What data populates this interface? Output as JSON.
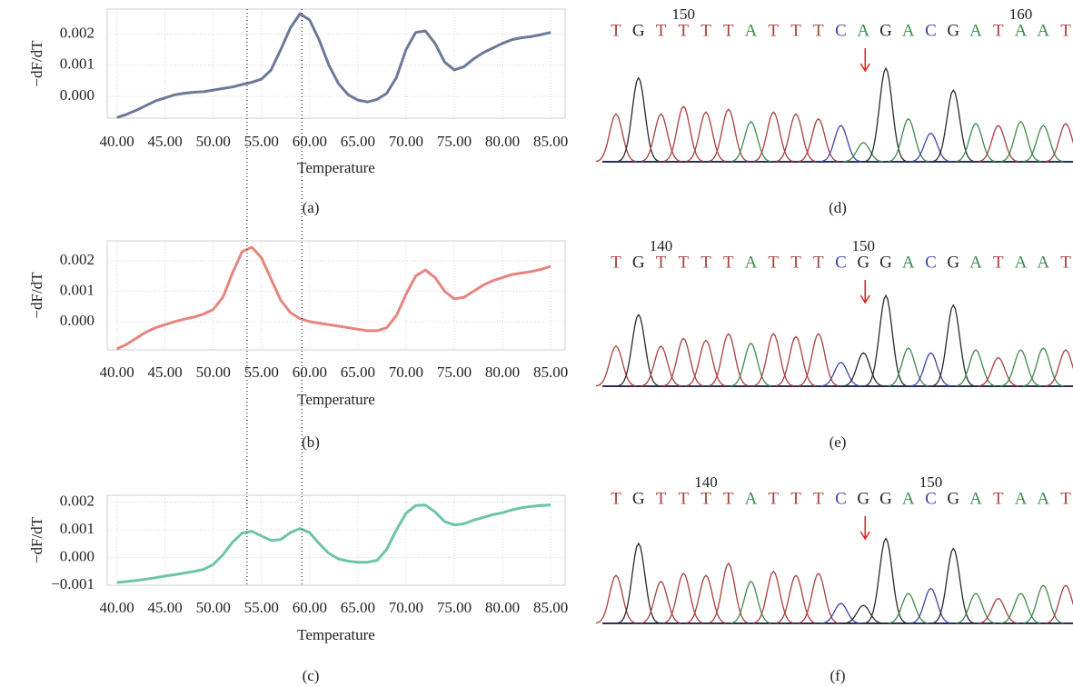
{
  "chart_data": [
    {
      "type": "line",
      "caption": "(a)",
      "x_label": "Temperature",
      "y_label": "−dF/dT",
      "color": "#6b7a99",
      "grid": true,
      "xlim": [
        39,
        86.5
      ],
      "ylim": [
        -0.0007,
        0.0028
      ],
      "xticks": [
        {
          "value": 40,
          "label": "40.00"
        },
        {
          "value": 45,
          "label": "45.00"
        },
        {
          "value": 50,
          "label": "50.00"
        },
        {
          "value": 55,
          "label": "55.00"
        },
        {
          "value": 60,
          "label": "60.00"
        },
        {
          "value": 65,
          "label": "65.00"
        },
        {
          "value": 70,
          "label": "70.00"
        },
        {
          "value": 75,
          "label": "75.00"
        },
        {
          "value": 80,
          "label": "80.00"
        },
        {
          "value": 85,
          "label": "85.00"
        }
      ],
      "yticks": [
        {
          "value": 0,
          "label": "0.000"
        },
        {
          "value": 0.001,
          "label": "0.001"
        },
        0.002
      ],
      "reference_lines": [
        53.5,
        59.2
      ],
      "x": [
        40,
        41,
        42,
        43,
        44,
        45,
        46,
        47,
        48,
        49,
        50,
        51,
        52,
        53,
        54,
        55,
        56,
        57,
        58,
        59,
        60,
        61,
        62,
        63,
        64,
        65,
        66,
        67,
        68,
        69,
        70,
        71,
        72,
        73,
        74,
        75,
        76,
        77,
        78,
        79,
        80,
        81,
        82,
        83,
        84,
        85
      ],
      "values": [
        -0.00068,
        -0.00058,
        -0.00045,
        -0.0003,
        -0.00015,
        -5e-05,
        5e-05,
        0.0001,
        0.00013,
        0.00015,
        0.0002,
        0.00025,
        0.0003,
        0.00038,
        0.00045,
        0.00055,
        0.00085,
        0.0015,
        0.0022,
        0.00265,
        0.00245,
        0.0018,
        0.001,
        0.0004,
        5e-05,
        -0.00012,
        -0.00018,
        -0.0001,
        0.0001,
        0.0006,
        0.0015,
        0.00205,
        0.0021,
        0.0017,
        0.0011,
        0.00085,
        0.00095,
        0.0012,
        0.0014,
        0.00155,
        0.0017,
        0.00182,
        0.00188,
        0.00192,
        0.00198,
        0.00205
      ]
    },
    {
      "type": "line",
      "caption": "(b)",
      "x_label": "Temperature",
      "y_label": "−dF/dT",
      "color": "#e8847e",
      "grid": true,
      "xlim": [
        39,
        86.5
      ],
      "ylim": [
        -0.00093,
        0.00266
      ],
      "xticks": [
        {
          "value": 40,
          "label": "40.00"
        },
        {
          "value": 45,
          "label": "45.00"
        },
        {
          "value": 50,
          "label": "50.00"
        },
        {
          "value": 55,
          "label": "55.00"
        },
        {
          "value": 60,
          "label": "60.00"
        },
        {
          "value": 65,
          "label": "65.00"
        },
        {
          "value": 70,
          "label": "70.00"
        },
        {
          "value": 75,
          "label": "75.00"
        },
        {
          "value": 80,
          "label": "80.00"
        },
        {
          "value": 85,
          "label": "85.00"
        }
      ],
      "yticks": [
        {
          "value": 0,
          "label": "0.000"
        },
        {
          "value": 0.001,
          "label": "0.001"
        },
        0.002
      ],
      "x": [
        40,
        41,
        42,
        43,
        44,
        45,
        46,
        47,
        48,
        49,
        50,
        51,
        52,
        53,
        54,
        55,
        56,
        57,
        58,
        59,
        60,
        61,
        62,
        63,
        64,
        65,
        66,
        67,
        68,
        69,
        70,
        71,
        72,
        73,
        74,
        75,
        76,
        77,
        78,
        79,
        80,
        81,
        82,
        83,
        84,
        85
      ],
      "values": [
        -0.0009,
        -0.00075,
        -0.00055,
        -0.00035,
        -0.0002,
        -0.0001,
        0,
        8e-05,
        0.00015,
        0.00025,
        0.0004,
        0.0008,
        0.0016,
        0.0023,
        0.00245,
        0.0021,
        0.0014,
        0.0007,
        0.0003,
        0.0001,
        0,
        -5e-05,
        -0.0001,
        -0.00015,
        -0.0002,
        -0.00025,
        -0.0003,
        -0.0003,
        -0.0002,
        0.0002,
        0.0009,
        0.0015,
        0.0017,
        0.00145,
        0.001,
        0.00075,
        0.0008,
        0.001,
        0.0012,
        0.00135,
        0.00145,
        0.00155,
        0.0016,
        0.00165,
        0.00172,
        0.00182
      ]
    },
    {
      "type": "line",
      "caption": "(c)",
      "x_label": "Temperature",
      "y_label": "−dF/dT",
      "color": "#6cc4ac",
      "grid": true,
      "xlim": [
        39,
        86.5
      ],
      "ylim": [
        -0.001,
        0.00225
      ],
      "xticks": [
        {
          "value": 40,
          "label": "40.00"
        },
        {
          "value": 45,
          "label": "45.00"
        },
        {
          "value": 50,
          "label": "50.00"
        },
        {
          "value": 55,
          "label": "55.00"
        },
        {
          "value": 60,
          "label": "60.00"
        },
        {
          "value": 65,
          "label": "65.00"
        },
        {
          "value": 70,
          "label": "70.00"
        },
        {
          "value": 75,
          "label": "75.00"
        },
        {
          "value": 80,
          "label": "80.00"
        },
        {
          "value": 85,
          "label": "85.00"
        }
      ],
      "yticks": [
        {
          "value": -0.001,
          "label": "−0.001"
        },
        {
          "value": 0,
          "label": "0.000"
        },
        {
          "value": 0.001,
          "label": "0.001"
        },
        0.002
      ],
      "x": [
        40,
        41,
        42,
        43,
        44,
        45,
        46,
        47,
        48,
        49,
        50,
        51,
        52,
        53,
        54,
        55,
        56,
        57,
        58,
        59,
        60,
        61,
        62,
        63,
        64,
        65,
        66,
        67,
        68,
        69,
        70,
        71,
        72,
        73,
        74,
        75,
        76,
        77,
        78,
        79,
        80,
        81,
        82,
        83,
        84,
        85
      ],
      "values": [
        -0.0009,
        -0.00087,
        -0.00083,
        -0.00078,
        -0.00073,
        -0.00067,
        -0.00062,
        -0.00056,
        -0.0005,
        -0.00043,
        -0.00025,
        0.0001,
        0.00055,
        0.00088,
        0.00095,
        0.00078,
        0.00062,
        0.00065,
        0.0009,
        0.00105,
        0.0009,
        0.0005,
        0.00015,
        -5e-05,
        -0.00013,
        -0.00017,
        -0.00017,
        -0.0001,
        0.0003,
        0.001,
        0.0016,
        0.00188,
        0.0019,
        0.00165,
        0.0013,
        0.00118,
        0.00122,
        0.00135,
        0.00145,
        0.00155,
        0.00162,
        0.00172,
        0.0018,
        0.00185,
        0.00188,
        0.0019
      ]
    },
    {
      "type": "chromatogram",
      "caption": "(d)",
      "base_colors": {
        "T": "#a8403f",
        "G": "#2a2a2a",
        "A": "#3f8a4c",
        "C": "#3f46a8"
      },
      "bases": [
        "T",
        "G",
        "T",
        "T",
        "T",
        "T",
        "A",
        "T",
        "T",
        "T",
        "C",
        "A",
        "G",
        "A",
        "C",
        "G",
        "A",
        "T",
        "A",
        "A",
        "T"
      ],
      "position_labels": [
        null,
        null,
        null,
        "150",
        null,
        null,
        null,
        null,
        null,
        null,
        null,
        null,
        null,
        null,
        null,
        null,
        null,
        null,
        "160",
        null,
        null
      ],
      "peak_heights": [
        50,
        88,
        50,
        58,
        52,
        55,
        42,
        52,
        50,
        45,
        38,
        20,
        98,
        45,
        30,
        75,
        40,
        38,
        42,
        38,
        40
      ]
    },
    {
      "type": "chromatogram",
      "caption": "(e)",
      "base_colors": {
        "T": "#a8403f",
        "G": "#2a2a2a",
        "A": "#3f8a4c",
        "C": "#3f46a8"
      },
      "bases": [
        "T",
        "G",
        "T",
        "T",
        "T",
        "T",
        "A",
        "T",
        "T",
        "T",
        "C",
        "G",
        "G",
        "A",
        "C",
        "G",
        "A",
        "T",
        "A",
        "A",
        "T"
      ],
      "position_labels": [
        null,
        null,
        "140",
        null,
        null,
        null,
        null,
        null,
        null,
        null,
        null,
        "150",
        null,
        null,
        null,
        null,
        null,
        null,
        null,
        null,
        null
      ],
      "peak_heights": [
        42,
        75,
        42,
        50,
        48,
        55,
        45,
        55,
        52,
        55,
        25,
        35,
        95,
        40,
        35,
        85,
        38,
        30,
        38,
        40,
        38
      ]
    },
    {
      "type": "chromatogram",
      "caption": "(f)",
      "base_colors": {
        "T": "#a8403f",
        "G": "#2a2a2a",
        "A": "#3f8a4c",
        "C": "#3f46a8"
      },
      "bases": [
        "T",
        "G",
        "T",
        "T",
        "T",
        "T",
        "A",
        "T",
        "T",
        "T",
        "C",
        "G",
        "G",
        "A",
        "C",
        "G",
        "A",
        "T",
        "A",
        "A",
        "T"
      ],
      "position_labels": [
        null,
        null,
        null,
        null,
        "140",
        null,
        null,
        null,
        null,
        null,
        null,
        null,
        null,
        null,
        "150",
        null,
        null,
        null,
        null,
        null,
        null
      ],
      "peak_heights": [
        48,
        80,
        42,
        50,
        48,
        60,
        42,
        52,
        48,
        50,
        20,
        18,
        85,
        30,
        35,
        75,
        30,
        25,
        30,
        38,
        38
      ]
    }
  ]
}
